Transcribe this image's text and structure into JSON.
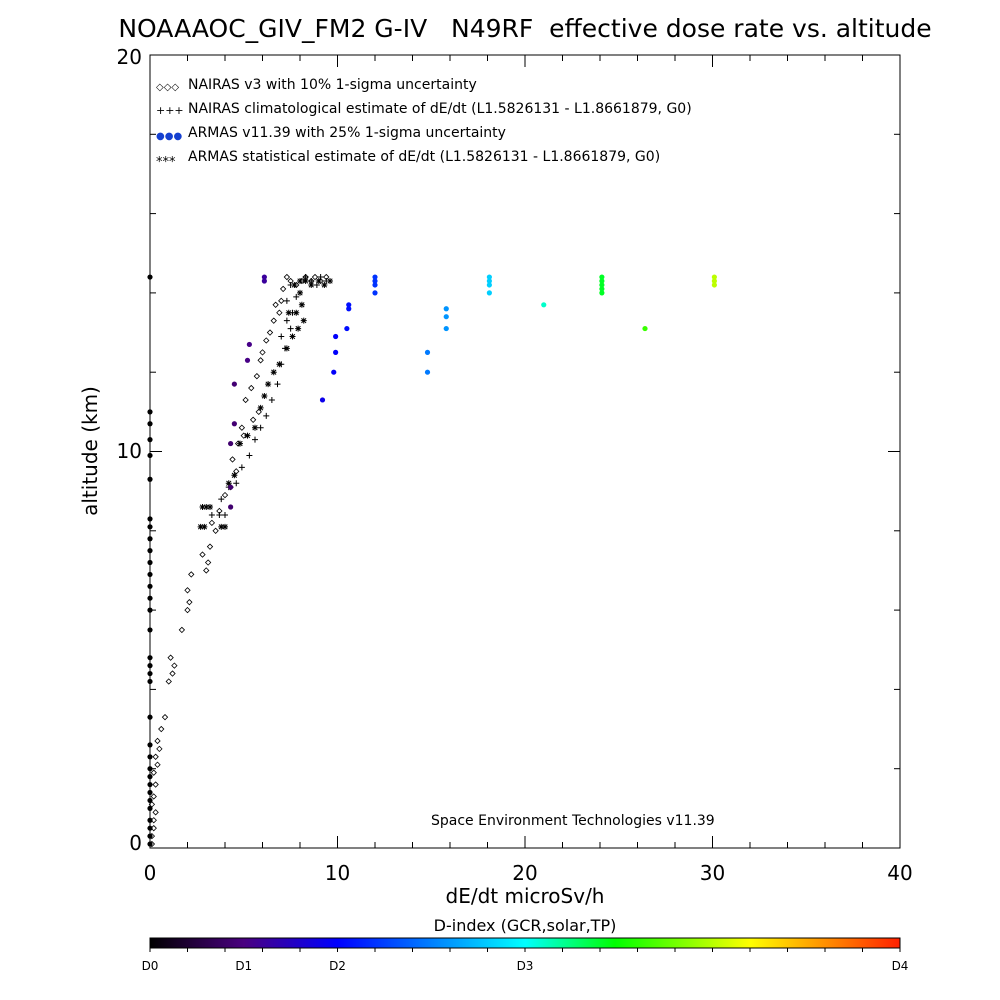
{
  "chart_data": {
    "type": "scatter",
    "title": "NOAAAOC_GIV_FM2 G-IV   N49RF  effective dose rate vs. altitude",
    "xlabel": "dE/dt microSv/h",
    "ylabel": "altitude (km)",
    "xlim": [
      0,
      40
    ],
    "ylim": [
      0,
      20
    ],
    "x_tick_labels": [
      "0",
      "10",
      "20",
      "30",
      "40"
    ],
    "y_tick_labels": [
      "0",
      "10",
      "20"
    ],
    "legend_position": "top-left",
    "legend": [
      {
        "symbol": "◇◇◇",
        "text": "NAIRAS v3 with 10% 1-sigma uncertainty"
      },
      {
        "symbol": "+++",
        "text": "NAIRAS climatological estimate of dE/dt (L1.5826131 - L1.8661879, G0)"
      },
      {
        "symbol": "●●●",
        "text": "ARMAS v11.39 with 25% 1-sigma uncertainty"
      },
      {
        "symbol": "***",
        "text": "ARMAS statistical estimate of dE/dt (L1.5826131 - L1.8661879, G0)"
      }
    ],
    "annotation": "Space Environment Technologies v11.39",
    "colorbar": {
      "title": "D-index (GCR,solar,TP)",
      "labels": [
        {
          "text": "D0",
          "value": 0
        },
        {
          "text": "D1",
          "value": 5
        },
        {
          "text": "D2",
          "value": 10
        },
        {
          "text": "D3",
          "value": 20
        },
        {
          "text": "D4",
          "value": 40
        }
      ]
    },
    "series": [
      {
        "marker": "diamond",
        "points": [
          [
            0.1,
            0.1
          ],
          [
            0.1,
            0.3
          ],
          [
            0.2,
            0.5
          ],
          [
            0.2,
            0.7
          ],
          [
            0.3,
            0.9
          ],
          [
            0.1,
            1.1
          ],
          [
            0.2,
            1.3
          ],
          [
            0.3,
            1.6
          ],
          [
            0.2,
            1.9
          ],
          [
            0.4,
            2.1
          ],
          [
            0.3,
            2.3
          ],
          [
            0.5,
            2.5
          ],
          [
            0.4,
            2.7
          ],
          [
            0.6,
            3.0
          ],
          [
            0.8,
            3.3
          ],
          [
            1.0,
            4.2
          ],
          [
            1.2,
            4.4
          ],
          [
            1.3,
            4.6
          ],
          [
            1.1,
            4.8
          ],
          [
            1.7,
            5.5
          ],
          [
            2.0,
            6.0
          ],
          [
            2.1,
            6.2
          ],
          [
            2.0,
            6.5
          ],
          [
            2.2,
            6.9
          ],
          [
            3.0,
            7.0
          ],
          [
            3.1,
            7.2
          ],
          [
            2.8,
            7.4
          ],
          [
            3.2,
            7.6
          ],
          [
            3.5,
            8.0
          ],
          [
            3.3,
            8.2
          ],
          [
            3.7,
            8.5
          ],
          [
            4.0,
            8.9
          ],
          [
            4.3,
            9.1
          ],
          [
            4.6,
            9.5
          ],
          [
            4.4,
            9.8
          ],
          [
            4.7,
            10.2
          ],
          [
            5.0,
            10.4
          ],
          [
            4.9,
            10.6
          ],
          [
            5.5,
            10.8
          ],
          [
            5.8,
            11.0
          ],
          [
            5.1,
            11.3
          ],
          [
            5.4,
            11.6
          ],
          [
            5.7,
            11.9
          ],
          [
            5.9,
            12.3
          ],
          [
            6.0,
            12.5
          ],
          [
            6.2,
            12.8
          ],
          [
            6.4,
            13.0
          ],
          [
            6.6,
            13.3
          ],
          [
            6.9,
            13.5
          ],
          [
            6.7,
            13.7
          ],
          [
            7.0,
            13.8
          ],
          [
            7.1,
            14.1
          ],
          [
            7.5,
            14.3
          ],
          [
            7.3,
            14.4
          ],
          [
            7.8,
            14.2
          ],
          [
            8.1,
            14.3
          ],
          [
            8.3,
            14.4
          ],
          [
            8.6,
            14.3
          ],
          [
            8.8,
            14.4
          ],
          [
            9.1,
            14.3
          ],
          [
            9.4,
            14.4
          ]
        ]
      },
      {
        "marker": "plus",
        "points": [
          [
            3.3,
            8.4
          ],
          [
            3.7,
            8.4
          ],
          [
            4.0,
            8.4
          ],
          [
            3.8,
            8.8
          ],
          [
            4.2,
            9.1
          ],
          [
            4.6,
            9.2
          ],
          [
            4.9,
            9.6
          ],
          [
            5.3,
            9.9
          ],
          [
            5.6,
            10.3
          ],
          [
            5.9,
            10.6
          ],
          [
            6.2,
            10.9
          ],
          [
            6.5,
            11.3
          ],
          [
            6.8,
            11.7
          ],
          [
            7.0,
            12.2
          ],
          [
            7.2,
            12.6
          ],
          [
            7.0,
            12.9
          ],
          [
            7.5,
            13.1
          ],
          [
            7.3,
            13.3
          ],
          [
            7.6,
            13.5
          ],
          [
            7.3,
            13.8
          ],
          [
            7.8,
            13.9
          ],
          [
            7.5,
            14.2
          ],
          [
            8.0,
            14.3
          ],
          [
            8.3,
            14.4
          ],
          [
            8.6,
            14.3
          ],
          [
            8.9,
            14.2
          ],
          [
            9.1,
            14.4
          ],
          [
            9.4,
            14.3
          ]
        ]
      },
      {
        "marker": "asterisk",
        "points": [
          [
            2.8,
            8.6
          ],
          [
            3.0,
            8.6
          ],
          [
            3.2,
            8.6
          ],
          [
            2.7,
            8.1
          ],
          [
            2.9,
            8.1
          ],
          [
            3.8,
            8.1
          ],
          [
            4.0,
            8.1
          ],
          [
            4.2,
            9.2
          ],
          [
            4.5,
            9.4
          ],
          [
            4.8,
            10.2
          ],
          [
            5.2,
            10.4
          ],
          [
            5.6,
            10.6
          ],
          [
            5.9,
            11.1
          ],
          [
            6.1,
            11.4
          ],
          [
            6.3,
            11.7
          ],
          [
            6.6,
            12.0
          ],
          [
            6.9,
            12.2
          ],
          [
            7.3,
            12.6
          ],
          [
            7.6,
            12.9
          ],
          [
            7.9,
            13.1
          ],
          [
            8.2,
            13.3
          ],
          [
            7.8,
            13.5
          ],
          [
            8.1,
            13.7
          ],
          [
            7.4,
            13.5
          ],
          [
            8.0,
            14.0
          ],
          [
            7.7,
            14.2
          ],
          [
            8.0,
            14.3
          ],
          [
            8.3,
            14.3
          ],
          [
            8.6,
            14.2
          ],
          [
            9.0,
            14.3
          ],
          [
            9.3,
            14.2
          ],
          [
            9.6,
            14.3
          ]
        ]
      },
      {
        "marker": "dot",
        "points": [
          [
            0,
            0.1
          ],
          [
            0,
            0.3
          ],
          [
            0,
            0.5
          ],
          [
            0,
            0.7
          ],
          [
            0,
            1.0
          ],
          [
            0,
            1.2
          ],
          [
            0,
            1.4
          ],
          [
            0,
            1.6
          ],
          [
            0,
            1.8
          ],
          [
            0,
            2.0
          ],
          [
            0,
            2.3
          ],
          [
            0,
            2.6
          ],
          [
            0,
            3.3
          ],
          [
            0,
            4.2
          ],
          [
            0,
            4.4
          ],
          [
            0,
            4.6
          ],
          [
            0,
            4.8
          ],
          [
            0,
            5.5
          ],
          [
            0,
            6.0
          ],
          [
            0,
            6.3
          ],
          [
            0,
            6.6
          ],
          [
            0,
            6.9
          ],
          [
            0,
            7.2
          ],
          [
            0,
            7.5
          ],
          [
            0,
            7.8
          ],
          [
            0,
            8.1
          ],
          [
            0,
            8.3
          ],
          [
            0,
            9.3
          ],
          [
            0,
            9.9
          ],
          [
            0,
            10.3
          ],
          [
            0,
            10.7
          ],
          [
            0,
            11.0
          ],
          [
            0,
            14.4
          ],
          [
            4.3,
            8.6
          ],
          [
            4.3,
            9.1
          ],
          [
            4.3,
            10.2
          ],
          [
            4.5,
            11.7
          ],
          [
            5.2,
            12.3
          ],
          [
            5.3,
            12.7
          ],
          [
            4.5,
            10.7
          ],
          [
            6.1,
            14.4
          ],
          [
            6.1,
            14.3
          ],
          [
            9.2,
            11.3
          ],
          [
            9.8,
            12.0
          ],
          [
            9.9,
            12.5
          ],
          [
            9.9,
            12.9
          ],
          [
            10.5,
            13.1
          ],
          [
            10.6,
            13.6
          ],
          [
            10.6,
            13.7
          ],
          [
            12.0,
            14.0
          ],
          [
            12.0,
            14.2
          ],
          [
            12.0,
            14.3
          ],
          [
            12.0,
            14.4
          ],
          [
            14.8,
            12.0
          ],
          [
            14.8,
            12.5
          ],
          [
            15.8,
            13.1
          ],
          [
            15.8,
            13.4
          ],
          [
            15.8,
            13.6
          ],
          [
            18.1,
            14.0
          ],
          [
            18.1,
            14.2
          ],
          [
            18.1,
            14.3
          ],
          [
            18.1,
            14.4
          ],
          [
            21.0,
            13.7
          ],
          [
            24.1,
            14.0
          ],
          [
            24.1,
            14.1
          ],
          [
            24.1,
            14.2
          ],
          [
            24.1,
            14.3
          ],
          [
            24.1,
            14.4
          ],
          [
            26.4,
            13.1
          ],
          [
            30.1,
            14.2
          ],
          [
            30.1,
            14.3
          ],
          [
            30.1,
            14.4
          ]
        ]
      }
    ]
  }
}
